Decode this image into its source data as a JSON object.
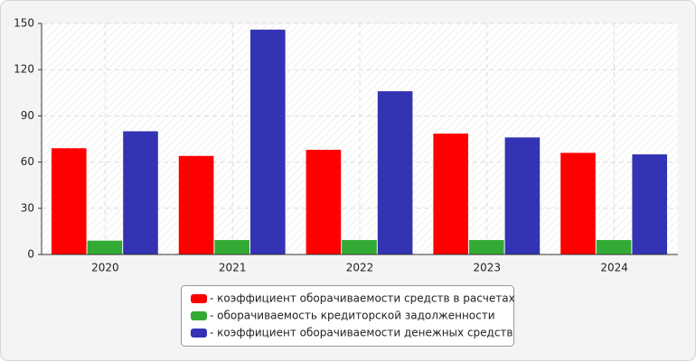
{
  "chart_data": {
    "type": "bar",
    "categories": [
      "2020",
      "2021",
      "2022",
      "2023",
      "2024"
    ],
    "series": [
      {
        "name": "- коэффициент оборачиваемости средств в расчетах",
        "color": "#ff0000",
        "values": [
          69,
          64,
          68,
          78.5,
          66
        ]
      },
      {
        "name": "- оборачиваемость кредиторской задолженности",
        "color": "#33aa33",
        "values": [
          9,
          9.4,
          9.4,
          9.4,
          9.4
        ]
      },
      {
        "name": "- коэффициент оборачиваемости денежных средств",
        "color": "#3333b3",
        "values": [
          80,
          146,
          106,
          76,
          65
        ]
      }
    ],
    "ylim": [
      0,
      150
    ],
    "yticks": [
      0,
      30,
      60,
      90,
      120,
      150
    ],
    "grid": true,
    "legend": "bottom"
  }
}
